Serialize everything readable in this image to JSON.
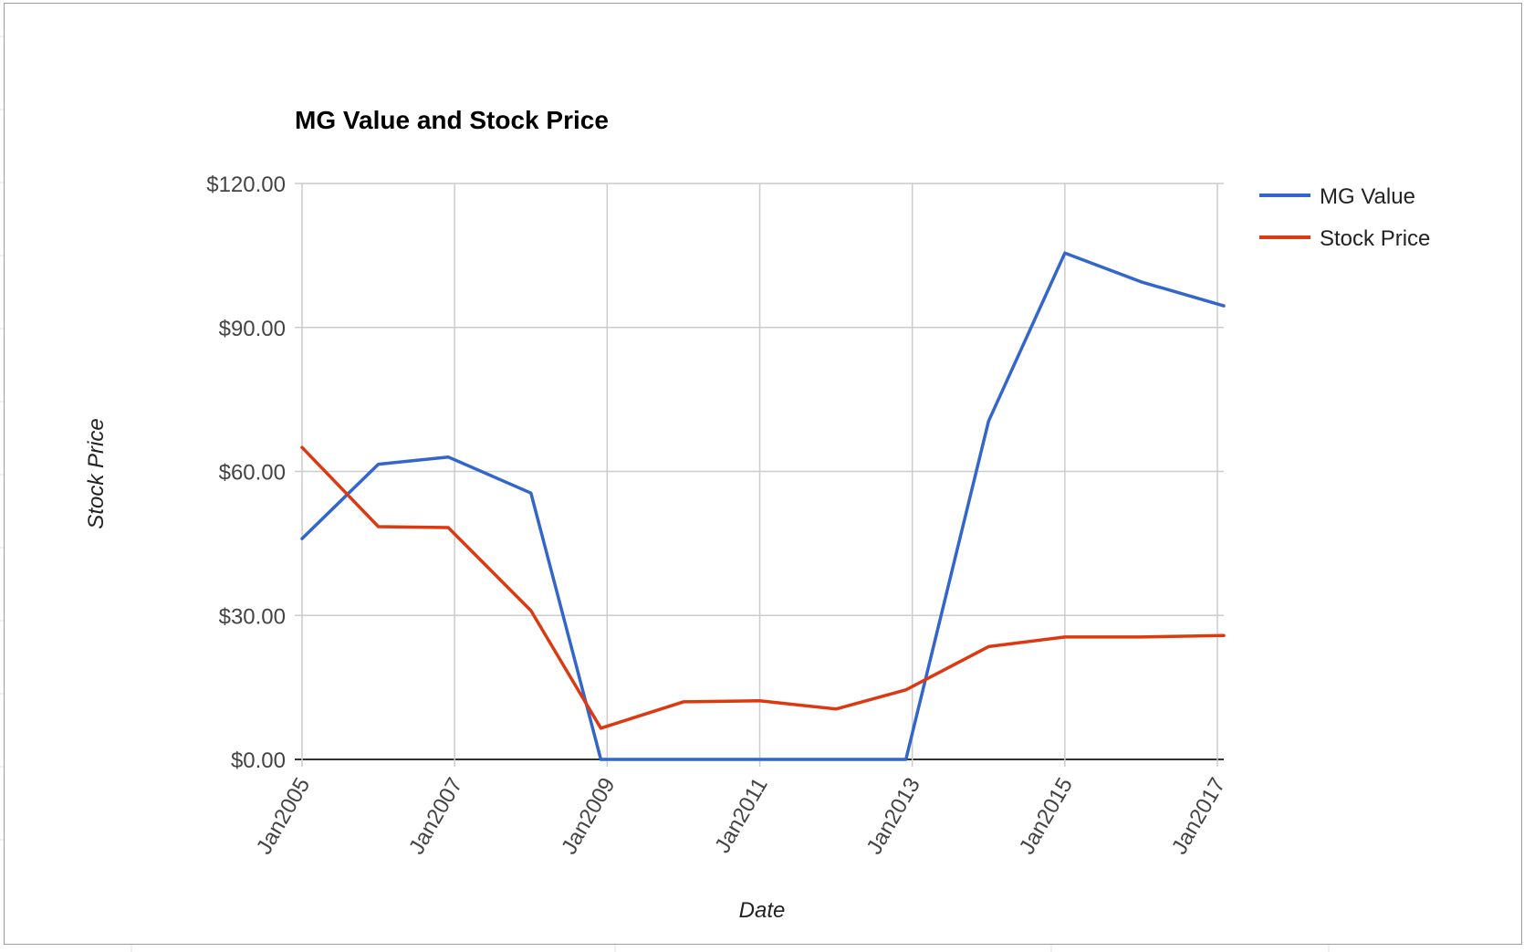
{
  "chart_data": {
    "type": "line",
    "title": "MG Value and Stock Price",
    "xlabel": "Date",
    "ylabel": "Stock Price",
    "ylim": [
      0,
      120
    ],
    "yticks": [
      0,
      30,
      60,
      90,
      120
    ],
    "ytick_labels": [
      "$0.00",
      "$30.00",
      "$60.00",
      "$90.00",
      "$120.00"
    ],
    "xlim": [
      "2005-01",
      "2017-02"
    ],
    "xticks": [
      "2005-01",
      "2007-01",
      "2009-01",
      "2011-01",
      "2013-01",
      "2015-01",
      "2017-01"
    ],
    "xtick_labels": [
      "Jan2005",
      "Jan2007",
      "Jan2009",
      "Jan2011",
      "Jan2013",
      "Jan2015",
      "Jan2017"
    ],
    "grid": true,
    "legend_position": "top-right",
    "series": [
      {
        "name": "MG Value",
        "color": "#3366cc",
        "points": [
          [
            "2005-01",
            46
          ],
          [
            "2006-01",
            61.5
          ],
          [
            "2006-12",
            63
          ],
          [
            "2008-01",
            55.5
          ],
          [
            "2008-12",
            0
          ],
          [
            "2010-01",
            0
          ],
          [
            "2011-01",
            0
          ],
          [
            "2012-01",
            0
          ],
          [
            "2012-12",
            0
          ],
          [
            "2014-01",
            70.5
          ],
          [
            "2015-01",
            105.5
          ],
          [
            "2016-01",
            99.5
          ],
          [
            "2017-02",
            94.5
          ]
        ]
      },
      {
        "name": "Stock Price",
        "color": "#dc3912",
        "points": [
          [
            "2005-01",
            65
          ],
          [
            "2006-01",
            48.5
          ],
          [
            "2006-12",
            48.3
          ],
          [
            "2008-01",
            31
          ],
          [
            "2008-12",
            6.5
          ],
          [
            "2010-01",
            12
          ],
          [
            "2011-01",
            12.2
          ],
          [
            "2012-01",
            10.5
          ],
          [
            "2012-12",
            14.5
          ],
          [
            "2014-01",
            23.5
          ],
          [
            "2015-01",
            25.5
          ],
          [
            "2016-01",
            25.5
          ],
          [
            "2017-02",
            25.8
          ]
        ]
      }
    ]
  }
}
